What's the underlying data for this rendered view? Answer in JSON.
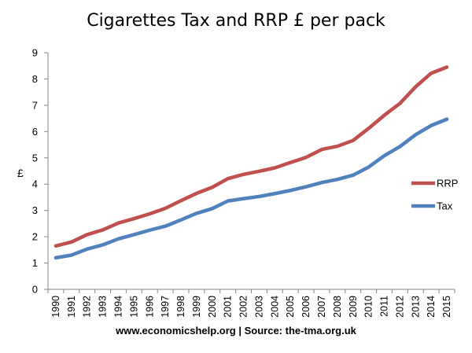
{
  "chart_data": {
    "type": "line",
    "title": "Cigarettes Tax and RRP £ per pack",
    "ylabel": "£",
    "xlabel": "",
    "ylim": [
      0,
      9
    ],
    "yticks": [
      "0",
      "1",
      "2",
      "3",
      "4",
      "5",
      "6",
      "7",
      "8",
      "9"
    ],
    "grid": false,
    "legend_position": "right",
    "categories": [
      "1990",
      "1991",
      "1992",
      "1993",
      "1994",
      "1995",
      "1996",
      "1997",
      "1998",
      "1999",
      "2000",
      "2001",
      "2002",
      "2003",
      "2004",
      "2005",
      "2006",
      "2007",
      "2008",
      "2009",
      "2010",
      "2011",
      "2012",
      "2013",
      "2014",
      "2015"
    ],
    "series": [
      {
        "name": "RRP",
        "color": "#c0504d",
        "values": [
          1.65,
          1.8,
          2.08,
          2.26,
          2.52,
          2.69,
          2.87,
          3.08,
          3.37,
          3.65,
          3.88,
          4.21,
          4.37,
          4.49,
          4.62,
          4.82,
          5.02,
          5.32,
          5.44,
          5.66,
          6.12,
          6.62,
          7.07,
          7.7,
          8.22,
          8.45
        ]
      },
      {
        "name": "Tax",
        "color": "#4f81bd",
        "values": [
          1.2,
          1.3,
          1.53,
          1.69,
          1.92,
          2.08,
          2.25,
          2.4,
          2.64,
          2.89,
          3.07,
          3.36,
          3.45,
          3.53,
          3.64,
          3.76,
          3.9,
          4.06,
          4.18,
          4.34,
          4.65,
          5.08,
          5.43,
          5.88,
          6.23,
          6.47
        ]
      }
    ],
    "source_text": "www.economicshelp.org | Source: the-tma.org.uk"
  }
}
